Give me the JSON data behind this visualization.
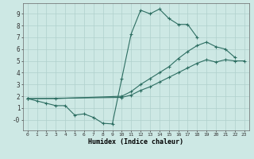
{
  "title": "",
  "xlabel": "Humidex (Indice chaleur)",
  "ylabel": "",
  "bg_color": "#cde8e4",
  "grid_color": "#b0d0cc",
  "line_color": "#2d6e62",
  "xlim": [
    -0.5,
    23.5
  ],
  "ylim": [
    -0.9,
    9.9
  ],
  "xticks": [
    0,
    1,
    2,
    3,
    4,
    5,
    6,
    7,
    8,
    9,
    10,
    11,
    12,
    13,
    14,
    15,
    16,
    17,
    18,
    19,
    20,
    21,
    22,
    23
  ],
  "yticks": [
    0,
    1,
    2,
    3,
    4,
    5,
    6,
    7,
    8,
    9
  ],
  "ytick_labels": [
    "-0",
    "1",
    "2",
    "3",
    "4",
    "5",
    "6",
    "7",
    "8",
    "9"
  ],
  "line1_x": [
    0,
    1,
    2,
    3,
    4,
    5,
    6,
    7,
    8,
    9,
    10,
    11,
    12,
    13,
    14,
    15,
    16,
    17,
    18
  ],
  "line1_y": [
    1.8,
    1.6,
    1.4,
    1.2,
    1.2,
    0.4,
    0.5,
    0.2,
    -0.3,
    -0.35,
    3.5,
    7.3,
    9.3,
    9.0,
    9.4,
    8.6,
    8.1,
    8.1,
    7.0
  ],
  "line2_x": [
    0,
    3,
    10,
    11,
    12,
    13,
    14,
    15,
    16,
    17,
    18,
    19,
    20,
    21,
    22
  ],
  "line2_y": [
    1.8,
    1.8,
    2.0,
    2.4,
    3.0,
    3.5,
    4.0,
    4.5,
    5.2,
    5.8,
    6.3,
    6.6,
    6.2,
    6.0,
    5.3
  ],
  "line3_x": [
    0,
    10,
    11,
    12,
    13,
    14,
    15,
    16,
    17,
    18,
    19,
    20,
    21,
    22,
    23
  ],
  "line3_y": [
    1.8,
    1.9,
    2.1,
    2.5,
    2.8,
    3.2,
    3.6,
    4.0,
    4.4,
    4.8,
    5.1,
    4.9,
    5.1,
    5.0,
    5.0
  ]
}
